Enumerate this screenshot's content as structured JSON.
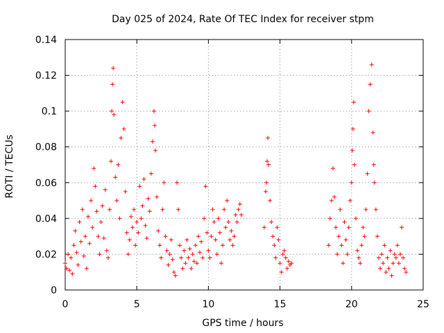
{
  "chart_data": {
    "type": "scatter",
    "title": "Day 025 of 2024, Rate Of TEC Index for receiver stpm",
    "xlabel": "GPS time / hours",
    "ylabel": "ROTI / TECUs",
    "xlim": [
      0,
      25
    ],
    "ylim": [
      0,
      0.14
    ],
    "xticks": [
      0,
      5,
      10,
      15,
      20,
      25
    ],
    "yticks": [
      0,
      0.02,
      0.04,
      0.06,
      0.08,
      0.1,
      0.12,
      0.14
    ],
    "xtick_labels": [
      "0",
      "5",
      "10",
      "15",
      "20",
      "25"
    ],
    "ytick_labels": [
      "0",
      "0.02",
      "0.04",
      "0.06",
      "0.08",
      "0.1",
      "0.12",
      "0.14"
    ],
    "grid": true,
    "marker": "+",
    "color": "#ff0000",
    "series": [
      {
        "name": "ROTI",
        "points": [
          [
            0.0,
            0.015
          ],
          [
            0.1,
            0.012
          ],
          [
            0.2,
            0.02
          ],
          [
            0.3,
            0.011
          ],
          [
            0.4,
            0.018
          ],
          [
            0.5,
            0.009
          ],
          [
            0.6,
            0.025
          ],
          [
            0.7,
            0.033
          ],
          [
            0.8,
            0.021
          ],
          [
            0.9,
            0.014
          ],
          [
            1.0,
            0.038
          ],
          [
            1.1,
            0.027
          ],
          [
            1.2,
            0.045
          ],
          [
            1.3,
            0.019
          ],
          [
            1.4,
            0.03
          ],
          [
            1.5,
            0.012
          ],
          [
            1.6,
            0.041
          ],
          [
            1.7,
            0.026
          ],
          [
            1.8,
            0.05
          ],
          [
            1.9,
            0.035
          ],
          [
            2.0,
            0.068
          ],
          [
            2.1,
            0.058
          ],
          [
            2.2,
            0.044
          ],
          [
            2.3,
            0.03
          ],
          [
            2.4,
            0.02
          ],
          [
            2.5,
            0.038
          ],
          [
            2.6,
            0.047
          ],
          [
            2.7,
            0.029
          ],
          [
            2.8,
            0.056
          ],
          [
            2.9,
            0.022
          ],
          [
            3.0,
            0.018
          ],
          [
            3.1,
            0.045
          ],
          [
            3.2,
            0.072
          ],
          [
            3.25,
            0.1
          ],
          [
            3.3,
            0.115
          ],
          [
            3.35,
            0.124
          ],
          [
            3.4,
            0.098
          ],
          [
            3.5,
            0.063
          ],
          [
            3.6,
            0.05
          ],
          [
            3.7,
            0.07
          ],
          [
            3.8,
            0.04
          ],
          [
            3.9,
            0.085
          ],
          [
            4.0,
            0.105
          ],
          [
            4.1,
            0.09
          ],
          [
            4.2,
            0.055
          ],
          [
            4.3,
            0.032
          ],
          [
            4.4,
            0.02
          ],
          [
            4.5,
            0.028
          ],
          [
            4.6,
            0.041
          ],
          [
            4.7,
            0.035
          ],
          [
            4.8,
            0.045
          ],
          [
            4.9,
            0.025
          ],
          [
            5.0,
            0.038
          ],
          [
            5.1,
            0.032
          ],
          [
            5.2,
            0.058
          ],
          [
            5.3,
            0.04
          ],
          [
            5.4,
            0.047
          ],
          [
            5.5,
            0.062
          ],
          [
            5.6,
            0.036
          ],
          [
            5.7,
            0.029
          ],
          [
            5.8,
            0.051
          ],
          [
            5.9,
            0.044
          ],
          [
            6.0,
            0.065
          ],
          [
            6.1,
            0.083
          ],
          [
            6.2,
            0.1
          ],
          [
            6.25,
            0.092
          ],
          [
            6.3,
            0.078
          ],
          [
            6.4,
            0.052
          ],
          [
            6.5,
            0.033
          ],
          [
            6.6,
            0.025
          ],
          [
            6.7,
            0.018
          ],
          [
            6.8,
            0.045
          ],
          [
            6.9,
            0.06
          ],
          [
            7.0,
            0.03
          ],
          [
            7.1,
            0.022
          ],
          [
            7.2,
            0.014
          ],
          [
            7.3,
            0.02
          ],
          [
            7.4,
            0.028
          ],
          [
            7.5,
            0.017
          ],
          [
            7.6,
            0.01
          ],
          [
            7.7,
            0.008
          ],
          [
            7.8,
            0.06
          ],
          [
            7.9,
            0.045
          ],
          [
            8.0,
            0.025
          ],
          [
            8.1,
            0.018
          ],
          [
            8.2,
            0.012
          ],
          [
            8.3,
            0.022
          ],
          [
            8.4,
            0.015
          ],
          [
            8.5,
            0.028
          ],
          [
            8.6,
            0.018
          ],
          [
            8.7,
            0.023
          ],
          [
            8.8,
            0.012
          ],
          [
            8.9,
            0.02
          ],
          [
            9.0,
            0.016
          ],
          [
            9.1,
            0.025
          ],
          [
            9.2,
            0.015
          ],
          [
            9.3,
            0.03
          ],
          [
            9.4,
            0.021
          ],
          [
            9.5,
            0.027
          ],
          [
            9.6,
            0.018
          ],
          [
            9.7,
            0.04
          ],
          [
            9.8,
            0.058
          ],
          [
            9.9,
            0.032
          ],
          [
            10.0,
            0.022
          ],
          [
            10.1,
            0.018
          ],
          [
            10.2,
            0.03
          ],
          [
            10.3,
            0.045
          ],
          [
            10.4,
            0.038
          ],
          [
            10.5,
            0.028
          ],
          [
            10.6,
            0.02
          ],
          [
            10.7,
            0.04
          ],
          [
            10.8,
            0.032
          ],
          [
            10.9,
            0.015
          ],
          [
            11.0,
            0.025
          ],
          [
            11.1,
            0.045
          ],
          [
            11.2,
            0.035
          ],
          [
            11.3,
            0.05
          ],
          [
            11.4,
            0.038
          ],
          [
            11.5,
            0.028
          ],
          [
            11.6,
            0.033
          ],
          [
            11.7,
            0.025
          ],
          [
            11.8,
            0.03
          ],
          [
            11.9,
            0.042
          ],
          [
            12.0,
            0.038
          ],
          [
            12.1,
            0.045
          ],
          [
            12.2,
            0.048
          ],
          [
            12.3,
            0.042
          ],
          [
            13.9,
            0.035
          ],
          [
            14.0,
            0.055
          ],
          [
            14.05,
            0.06
          ],
          [
            14.1,
            0.072
          ],
          [
            14.15,
            0.085
          ],
          [
            14.2,
            0.07
          ],
          [
            14.3,
            0.05
          ],
          [
            14.4,
            0.038
          ],
          [
            14.5,
            0.03
          ],
          [
            14.6,
            0.025
          ],
          [
            14.7,
            0.018
          ],
          [
            14.8,
            0.035
          ],
          [
            14.9,
            0.028
          ],
          [
            15.0,
            0.015
          ],
          [
            15.1,
            0.01
          ],
          [
            15.2,
            0.02
          ],
          [
            15.3,
            0.022
          ],
          [
            15.4,
            0.018
          ],
          [
            15.5,
            0.012
          ],
          [
            15.6,
            0.016
          ],
          [
            15.7,
            0.014
          ],
          [
            15.8,
            0.015
          ],
          [
            18.4,
            0.025
          ],
          [
            18.5,
            0.04
          ],
          [
            18.6,
            0.05
          ],
          [
            18.7,
            0.068
          ],
          [
            18.8,
            0.052
          ],
          [
            18.9,
            0.035
          ],
          [
            19.0,
            0.02
          ],
          [
            19.1,
            0.03
          ],
          [
            19.2,
            0.045
          ],
          [
            19.3,
            0.025
          ],
          [
            19.4,
            0.015
          ],
          [
            19.5,
            0.038
          ],
          [
            19.6,
            0.028
          ],
          [
            19.7,
            0.02
          ],
          [
            19.8,
            0.035
          ],
          [
            19.9,
            0.05
          ],
          [
            20.0,
            0.06
          ],
          [
            20.05,
            0.078
          ],
          [
            20.1,
            0.09
          ],
          [
            20.15,
            0.105
          ],
          [
            20.2,
            0.07
          ],
          [
            20.3,
            0.04
          ],
          [
            20.4,
            0.022
          ],
          [
            20.5,
            0.018
          ],
          [
            20.6,
            0.015
          ],
          [
            20.7,
            0.025
          ],
          [
            20.8,
            0.035
          ],
          [
            20.9,
            0.03
          ],
          [
            21.0,
            0.045
          ],
          [
            21.1,
            0.065
          ],
          [
            21.2,
            0.1
          ],
          [
            21.3,
            0.115
          ],
          [
            21.4,
            0.126
          ],
          [
            21.5,
            0.088
          ],
          [
            21.55,
            0.07
          ],
          [
            21.6,
            0.06
          ],
          [
            21.7,
            0.045
          ],
          [
            21.8,
            0.03
          ],
          [
            21.9,
            0.018
          ],
          [
            22.0,
            0.012
          ],
          [
            22.1,
            0.02
          ],
          [
            22.2,
            0.015
          ],
          [
            22.3,
            0.025
          ],
          [
            22.4,
            0.01
          ],
          [
            22.5,
            0.018
          ],
          [
            22.6,
            0.012
          ],
          [
            22.7,
            0.022
          ],
          [
            22.8,
            0.008
          ],
          [
            22.9,
            0.015
          ],
          [
            23.0,
            0.02
          ],
          [
            23.1,
            0.018
          ],
          [
            23.2,
            0.025
          ],
          [
            23.3,
            0.015
          ],
          [
            23.4,
            0.02
          ],
          [
            23.5,
            0.035
          ],
          [
            23.6,
            0.018
          ],
          [
            23.7,
            0.012
          ],
          [
            23.8,
            0.01
          ]
        ]
      }
    ]
  }
}
